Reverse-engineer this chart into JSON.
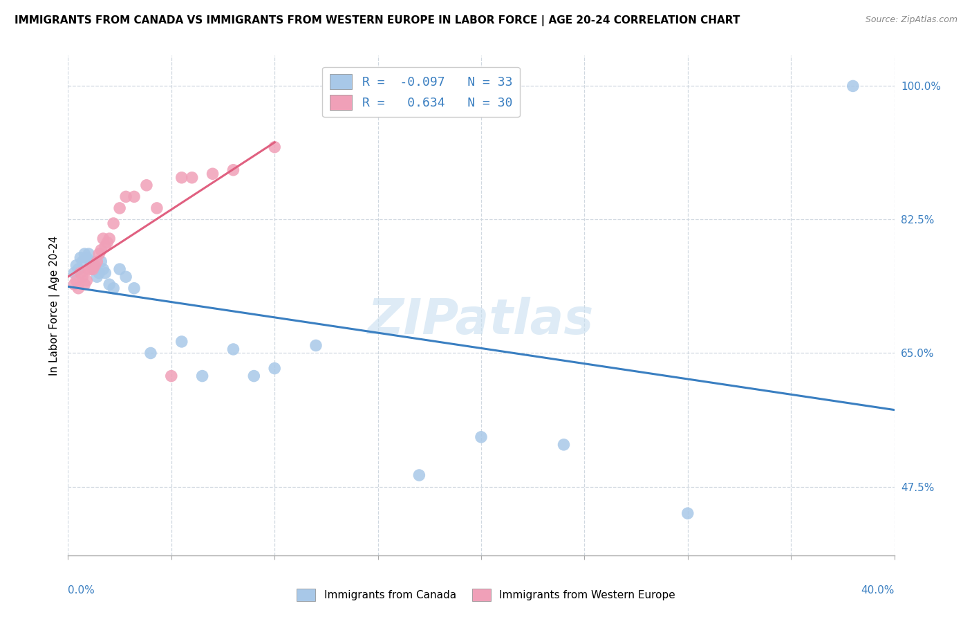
{
  "title": "IMMIGRANTS FROM CANADA VS IMMIGRANTS FROM WESTERN EUROPE IN LABOR FORCE | AGE 20-24 CORRELATION CHART",
  "source": "Source: ZipAtlas.com",
  "ylabel": "In Labor Force | Age 20-24",
  "y_tick_labels": [
    "100.0%",
    "82.5%",
    "65.0%",
    "47.5%"
  ],
  "y_tick_values": [
    1.0,
    0.825,
    0.65,
    0.475
  ],
  "x_range": [
    0.0,
    0.4
  ],
  "y_range": [
    0.385,
    1.04
  ],
  "legend_line1": "R =  -0.097   N = 33",
  "legend_line2": "R =   0.634   N = 30",
  "canada_label": "Immigrants from Canada",
  "europe_label": "Immigrants from Western Europe",
  "blue_color": "#a8c8e8",
  "pink_color": "#f0a0b8",
  "blue_line_color": "#3a7fc1",
  "pink_line_color": "#e06080",
  "blue_legend_color": "#a8c8e8",
  "pink_legend_color": "#f0a0b8",
  "watermark": "ZIPatlas",
  "background_color": "#ffffff",
  "grid_color": "#d0d8e0",
  "canada_x": [
    0.003,
    0.004,
    0.005,
    0.006,
    0.007,
    0.008,
    0.009,
    0.01,
    0.011,
    0.012,
    0.013,
    0.014,
    0.015,
    0.016,
    0.017,
    0.018,
    0.02,
    0.022,
    0.025,
    0.028,
    0.032,
    0.04,
    0.055,
    0.065,
    0.08,
    0.09,
    0.1,
    0.12,
    0.17,
    0.2,
    0.24,
    0.3,
    0.38
  ],
  "canada_y": [
    0.755,
    0.765,
    0.76,
    0.775,
    0.77,
    0.78,
    0.775,
    0.78,
    0.77,
    0.765,
    0.76,
    0.75,
    0.755,
    0.77,
    0.76,
    0.755,
    0.74,
    0.735,
    0.76,
    0.75,
    0.735,
    0.65,
    0.665,
    0.62,
    0.655,
    0.62,
    0.63,
    0.66,
    0.49,
    0.54,
    0.53,
    0.44,
    1.0
  ],
  "europe_x": [
    0.003,
    0.004,
    0.005,
    0.006,
    0.007,
    0.008,
    0.009,
    0.01,
    0.011,
    0.012,
    0.013,
    0.014,
    0.015,
    0.016,
    0.017,
    0.018,
    0.019,
    0.02,
    0.022,
    0.025,
    0.028,
    0.032,
    0.038,
    0.043,
    0.05,
    0.055,
    0.06,
    0.07,
    0.08,
    0.1
  ],
  "europe_y": [
    0.74,
    0.745,
    0.735,
    0.755,
    0.75,
    0.74,
    0.745,
    0.76,
    0.76,
    0.76,
    0.765,
    0.77,
    0.78,
    0.785,
    0.8,
    0.79,
    0.795,
    0.8,
    0.82,
    0.84,
    0.855,
    0.855,
    0.87,
    0.84,
    0.62,
    0.88,
    0.88,
    0.885,
    0.89,
    0.92
  ]
}
